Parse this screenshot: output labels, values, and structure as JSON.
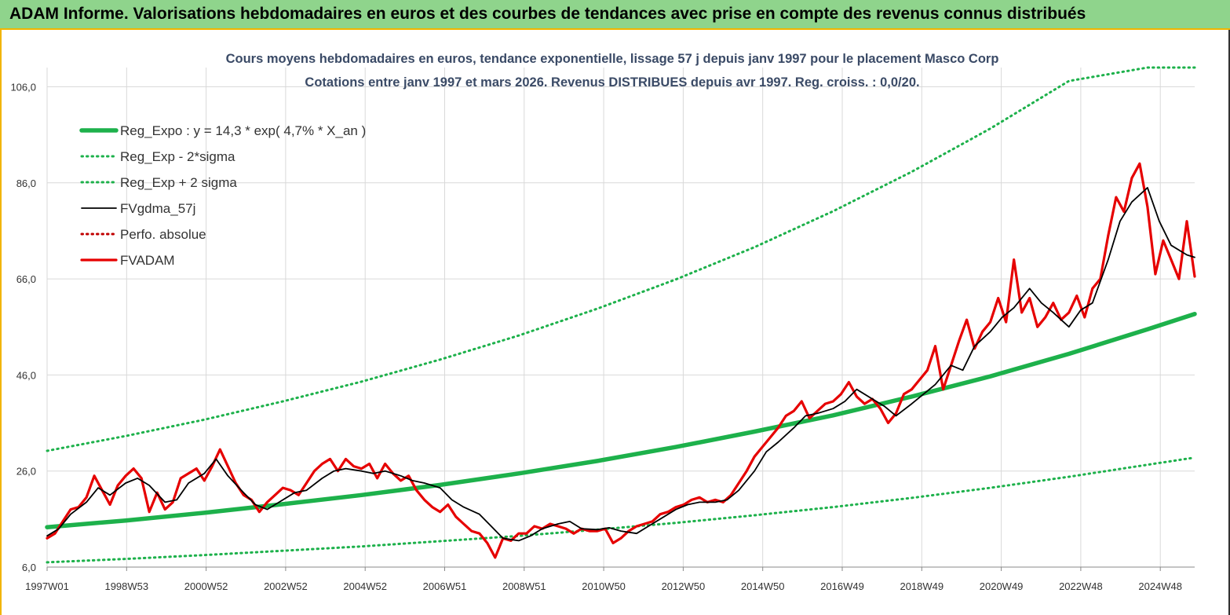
{
  "header": {
    "title": "ADAM Informe. Valorisations hebdomadaires en euros et des courbes de tendances avec prise en compte des revenus connus distribués"
  },
  "colors": {
    "reg": "#1db14b",
    "sigma": "#1db14b",
    "fvgdma": "#000000",
    "perfo": "#c00000",
    "fvadam": "#e60000",
    "banner": "#8fd48c"
  },
  "chart_data": {
    "type": "line",
    "title": "Cours moyens hebdomadaires en euros, tendance exponentielle, lissage 57 j depuis janv 1997 pour le placement Masco Corp",
    "subtitle": "Cotations entre janv 1997 et mars 2026. Revenus DISTRIBUES depuis avr 1997. Reg. croiss. : 0,0/20.",
    "xlabel": "",
    "ylabel": "",
    "x_ticks": [
      "1997W01",
      "1998W53",
      "2000W52",
      "2002W52",
      "2004W52",
      "2006W51",
      "2008W51",
      "2010W50",
      "2012W50",
      "2014W50",
      "2016W49",
      "2018W49",
      "2020W49",
      "2022W48",
      "2024W48"
    ],
    "y_ticks": [
      "6,0",
      "26,0",
      "46,0",
      "66,0",
      "86,0",
      "106,0"
    ],
    "ylim": [
      6,
      110
    ],
    "xlim": [
      1997.0,
      2026.2
    ],
    "grid": true,
    "legend_position": "top-left",
    "legend": [
      "Reg_Expo : y = 14,3 * exp( 4,7% *  X_an )",
      "Reg_Exp - 2*sigma",
      "Reg_Exp + 2 sigma",
      "FVgdma_57j",
      "Perfo. absolue",
      "FVADAM"
    ],
    "series": [
      {
        "name": "Reg_Expo : y = 14,3 * exp( 4,7% *  X_an )",
        "style": "solid-thick",
        "color": "#1db14b",
        "x": [
          1997,
          1999,
          2001,
          2003,
          2005,
          2007,
          2009,
          2011,
          2013,
          2015,
          2017,
          2019,
          2021,
          2023,
          2025,
          2026.2
        ],
        "y": [
          14.3,
          15.7,
          17.3,
          19.1,
          21.0,
          23.1,
          25.5,
          28.1,
          31.0,
          34.2,
          37.6,
          41.5,
          45.7,
          50.4,
          55.5,
          58.7
        ]
      },
      {
        "name": "Reg_Exp - 2*sigma",
        "style": "dotted",
        "color": "#1db14b",
        "x": [
          1997,
          1999,
          2001,
          2003,
          2005,
          2007,
          2009,
          2011,
          2013,
          2015,
          2017,
          2019,
          2021,
          2023,
          2025,
          2026.2
        ],
        "y": [
          7.0,
          7.7,
          8.5,
          9.4,
          10.3,
          11.4,
          12.5,
          13.8,
          15.2,
          16.8,
          18.5,
          20.4,
          22.5,
          24.8,
          27.3,
          28.8
        ]
      },
      {
        "name": "Reg_Exp + 2 sigma",
        "style": "dotted",
        "color": "#1db14b",
        "x": [
          1997,
          1999,
          2001,
          2003,
          2005,
          2007,
          2009,
          2011,
          2013,
          2015,
          2017,
          2019,
          2021,
          2023,
          2025,
          2026.2
        ],
        "y": [
          30.2,
          33.3,
          36.7,
          40.5,
          44.6,
          49.2,
          54.2,
          59.8,
          65.9,
          72.6,
          80.1,
          88.3,
          97.3,
          107.2,
          110.0,
          110.0
        ]
      },
      {
        "name": "FVgdma_57j",
        "style": "solid",
        "color": "#000000",
        "x": [
          1997.0,
          1997.3,
          1997.6,
          1998.0,
          1998.3,
          1998.6,
          1999.0,
          1999.3,
          1999.6,
          2000.0,
          2000.3,
          2000.6,
          2001.0,
          2001.3,
          2001.6,
          2002.0,
          2002.3,
          2002.6,
          2003.0,
          2003.3,
          2003.6,
          2004.0,
          2004.3,
          2004.6,
          2005.0,
          2005.3,
          2005.6,
          2006.0,
          2006.3,
          2006.6,
          2007.0,
          2007.3,
          2007.6,
          2008.0,
          2008.3,
          2008.6,
          2009.0,
          2009.3,
          2009.6,
          2010.0,
          2010.3,
          2010.6,
          2011.0,
          2011.3,
          2011.6,
          2012.0,
          2012.3,
          2012.6,
          2013.0,
          2013.3,
          2013.6,
          2014.0,
          2014.3,
          2014.6,
          2015.0,
          2015.3,
          2015.6,
          2016.0,
          2016.3,
          2016.6,
          2017.0,
          2017.3,
          2017.6,
          2018.0,
          2018.3,
          2018.6,
          2019.0,
          2019.3,
          2019.6,
          2020.0,
          2020.3,
          2020.6,
          2021.0,
          2021.3,
          2021.6,
          2022.0,
          2022.3,
          2022.6,
          2023.0,
          2023.3,
          2023.6,
          2024.0,
          2024.3,
          2024.6,
          2025.0,
          2025.3,
          2025.6,
          2026.0,
          2026.2
        ],
        "y": [
          12.5,
          14.0,
          17.0,
          19.5,
          22.5,
          21.0,
          23.5,
          24.5,
          23.0,
          19.5,
          20.0,
          23.5,
          25.5,
          28.5,
          25.0,
          21.5,
          19.0,
          18.0,
          20.0,
          21.5,
          22.0,
          24.5,
          26.0,
          26.5,
          26.0,
          25.5,
          26.0,
          25.0,
          24.0,
          23.5,
          22.5,
          20.0,
          18.5,
          17.0,
          14.5,
          12.0,
          11.5,
          12.5,
          14.0,
          15.0,
          15.5,
          14.0,
          13.8,
          14.2,
          13.5,
          13.0,
          14.5,
          16.0,
          18.0,
          19.0,
          19.5,
          19.5,
          20.0,
          22.0,
          26.0,
          30.0,
          32.0,
          35.0,
          37.5,
          38.0,
          39.0,
          40.5,
          43.0,
          41.0,
          39.5,
          37.5,
          40.0,
          42.0,
          44.0,
          48.0,
          47.0,
          52.0,
          55.0,
          58.0,
          60.0,
          64.0,
          61.0,
          59.0,
          56.0,
          59.5,
          61.0,
          70.0,
          78.0,
          82.0,
          85.0,
          78.0,
          73.0,
          71.0,
          70.5
        ]
      },
      {
        "name": "Perfo. absolue",
        "style": "dotted",
        "color": "#c00000",
        "x": [],
        "y": []
      },
      {
        "name": "FVADAM",
        "style": "solid-thick",
        "color": "#e60000",
        "x": [
          1997.0,
          1997.2,
          1997.4,
          1997.6,
          1997.8,
          1998.0,
          1998.2,
          1998.4,
          1998.6,
          1998.8,
          1999.0,
          1999.2,
          1999.4,
          1999.6,
          1999.8,
          2000.0,
          2000.2,
          2000.4,
          2000.6,
          2000.8,
          2001.0,
          2001.2,
          2001.4,
          2001.6,
          2001.8,
          2002.0,
          2002.2,
          2002.4,
          2002.6,
          2002.8,
          2003.0,
          2003.2,
          2003.4,
          2003.6,
          2003.8,
          2004.0,
          2004.2,
          2004.4,
          2004.6,
          2004.8,
          2005.0,
          2005.2,
          2005.4,
          2005.6,
          2005.8,
          2006.0,
          2006.2,
          2006.4,
          2006.6,
          2006.8,
          2007.0,
          2007.2,
          2007.4,
          2007.6,
          2007.8,
          2008.0,
          2008.2,
          2008.4,
          2008.6,
          2008.8,
          2009.0,
          2009.2,
          2009.4,
          2009.6,
          2009.8,
          2010.0,
          2010.2,
          2010.4,
          2010.6,
          2010.8,
          2011.0,
          2011.2,
          2011.4,
          2011.6,
          2011.8,
          2012.0,
          2012.2,
          2012.4,
          2012.6,
          2012.8,
          2013.0,
          2013.2,
          2013.4,
          2013.6,
          2013.8,
          2014.0,
          2014.2,
          2014.4,
          2014.6,
          2014.8,
          2015.0,
          2015.2,
          2015.4,
          2015.6,
          2015.8,
          2016.0,
          2016.2,
          2016.4,
          2016.6,
          2016.8,
          2017.0,
          2017.2,
          2017.4,
          2017.6,
          2017.8,
          2018.0,
          2018.2,
          2018.4,
          2018.6,
          2018.8,
          2019.0,
          2019.2,
          2019.4,
          2019.6,
          2019.8,
          2020.0,
          2020.2,
          2020.4,
          2020.6,
          2020.8,
          2021.0,
          2021.2,
          2021.4,
          2021.6,
          2021.8,
          2022.0,
          2022.2,
          2022.4,
          2022.6,
          2022.8,
          2023.0,
          2023.2,
          2023.4,
          2023.6,
          2023.8,
          2024.0,
          2024.2,
          2024.4,
          2024.6,
          2024.8,
          2025.0,
          2025.2,
          2025.4,
          2025.6,
          2025.8,
          2026.0,
          2026.2
        ],
        "y": [
          12.0,
          13.0,
          15.5,
          18.0,
          18.5,
          20.5,
          25.0,
          22.0,
          19.0,
          23.0,
          25.0,
          26.5,
          24.5,
          17.5,
          21.5,
          18.0,
          19.5,
          24.5,
          25.5,
          26.5,
          24.0,
          27.0,
          30.5,
          27.0,
          23.5,
          21.0,
          20.0,
          17.5,
          19.5,
          21.0,
          22.5,
          22.0,
          21.0,
          23.5,
          26.0,
          27.5,
          28.5,
          26.0,
          28.5,
          27.0,
          26.5,
          27.5,
          24.5,
          27.5,
          25.5,
          24.0,
          25.0,
          22.0,
          20.0,
          18.5,
          17.5,
          19.0,
          16.5,
          15.0,
          13.5,
          13.0,
          11.0,
          8.0,
          12.0,
          11.5,
          13.0,
          13.0,
          14.5,
          14.0,
          15.0,
          14.5,
          14.0,
          13.0,
          14.0,
          13.5,
          13.5,
          14.0,
          11.0,
          12.0,
          13.5,
          14.5,
          15.0,
          15.5,
          17.0,
          17.5,
          18.5,
          19.0,
          20.0,
          20.5,
          19.5,
          20.0,
          19.5,
          21.0,
          23.5,
          26.0,
          29.0,
          31.0,
          33.0,
          35.0,
          37.5,
          38.5,
          40.5,
          37.0,
          38.5,
          40.0,
          40.5,
          42.0,
          44.5,
          41.5,
          40.0,
          41.0,
          39.0,
          36.0,
          38.0,
          42.0,
          43.0,
          45.0,
          47.0,
          52.0,
          43.0,
          48.0,
          53.0,
          57.5,
          51.5,
          55.0,
          57.0,
          62.0,
          57.0,
          70.0,
          59.0,
          62.0,
          56.0,
          58.0,
          61.0,
          57.5,
          59.0,
          62.5,
          58.0,
          64.0,
          66.0,
          75.0,
          83.0,
          80.0,
          87.0,
          90.0,
          81.0,
          67.0,
          74.0,
          70.0,
          66.0,
          78.0,
          66.5
        ]
      }
    ]
  }
}
